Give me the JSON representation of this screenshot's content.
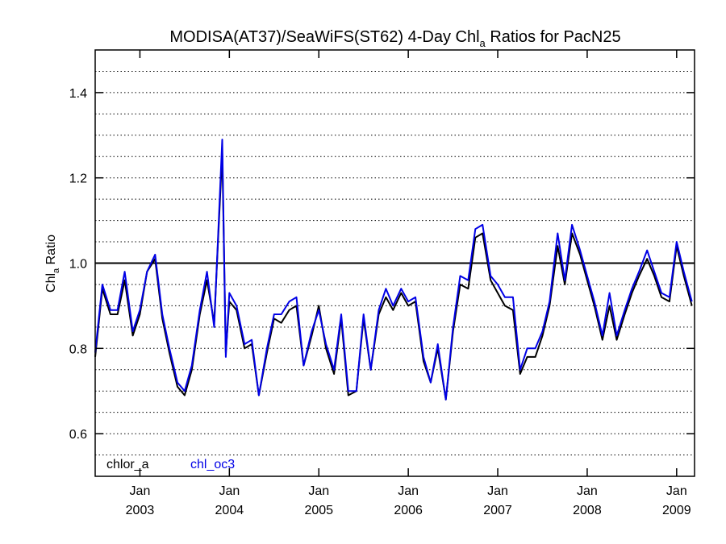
{
  "chart_data": {
    "type": "line",
    "title": "MODISA(AT37)/SeaWiFS(ST62) 4-Day Chl",
    "title_sub": "a",
    "title_tail": " Ratios for PacN25",
    "ylabel": "Chl",
    "ylabel_sub": "a",
    "ylabel_tail": " Ratio",
    "ylim": [
      0.5,
      1.5
    ],
    "xlim": [
      2002.5,
      2009.2
    ],
    "y_ticks": [
      {
        "value": 0.6,
        "label": "0.6"
      },
      {
        "value": 0.8,
        "label": "0.8"
      },
      {
        "value": 1.0,
        "label": "1.0"
      },
      {
        "value": 1.2,
        "label": "1.2"
      },
      {
        "value": 1.4,
        "label": "1.4"
      }
    ],
    "x_ticks": [
      {
        "value": 2003.0,
        "month": "Jan",
        "year": "2003"
      },
      {
        "value": 2004.0,
        "month": "Jan",
        "year": "2004"
      },
      {
        "value": 2005.0,
        "month": "Jan",
        "year": "2005"
      },
      {
        "value": 2006.0,
        "month": "Jan",
        "year": "2006"
      },
      {
        "value": 2007.0,
        "month": "Jan",
        "year": "2007"
      },
      {
        "value": 2008.0,
        "month": "Jan",
        "year": "2008"
      },
      {
        "value": 2009.0,
        "month": "Jan",
        "year": "2009"
      }
    ],
    "grid": "dotted horizontal every 0.05",
    "reference_line": 1.0,
    "x": [
      2002.5,
      2002.58,
      2002.67,
      2002.75,
      2002.83,
      2002.92,
      2003.0,
      2003.08,
      2003.17,
      2003.25,
      2003.33,
      2003.42,
      2003.5,
      2003.58,
      2003.67,
      2003.75,
      2003.83,
      2003.92,
      2003.96,
      2004.0,
      2004.08,
      2004.17,
      2004.25,
      2004.33,
      2004.42,
      2004.5,
      2004.58,
      2004.67,
      2004.75,
      2004.83,
      2004.92,
      2005.0,
      2005.08,
      2005.17,
      2005.25,
      2005.33,
      2005.42,
      2005.5,
      2005.58,
      2005.67,
      2005.75,
      2005.83,
      2005.92,
      2006.0,
      2006.08,
      2006.17,
      2006.25,
      2006.33,
      2006.42,
      2006.5,
      2006.58,
      2006.67,
      2006.75,
      2006.83,
      2006.92,
      2007.0,
      2007.08,
      2007.17,
      2007.25,
      2007.33,
      2007.42,
      2007.5,
      2007.58,
      2007.67,
      2007.75,
      2007.83,
      2007.92,
      2008.0,
      2008.08,
      2008.17,
      2008.25,
      2008.33,
      2008.42,
      2008.5,
      2008.58,
      2008.67,
      2008.75,
      2008.83,
      2008.92,
      2009.0,
      2009.08,
      2009.17
    ],
    "series": [
      {
        "name": "chlor_a",
        "color": "#000000",
        "values": [
          0.78,
          0.94,
          0.88,
          0.88,
          0.96,
          0.83,
          0.88,
          0.98,
          1.01,
          0.87,
          0.79,
          0.71,
          0.69,
          0.75,
          0.88,
          0.96,
          0.86,
          1.26,
          0.79,
          0.91,
          0.89,
          0.8,
          0.81,
          0.69,
          0.79,
          0.87,
          0.86,
          0.89,
          0.9,
          0.76,
          0.83,
          0.9,
          0.8,
          0.74,
          0.87,
          0.69,
          0.7,
          0.87,
          0.75,
          0.88,
          0.92,
          0.89,
          0.93,
          0.9,
          0.91,
          0.77,
          0.72,
          0.8,
          0.68,
          0.84,
          0.95,
          0.94,
          1.06,
          1.07,
          0.96,
          0.93,
          0.9,
          0.89,
          0.74,
          0.78,
          0.78,
          0.83,
          0.9,
          1.04,
          0.95,
          1.07,
          1.02,
          0.96,
          0.9,
          0.82,
          0.9,
          0.82,
          0.88,
          0.93,
          0.97,
          1.01,
          0.97,
          0.92,
          0.91,
          1.04,
          0.97,
          0.9
        ]
      },
      {
        "name": "chl_oc3",
        "color": "#0000e6",
        "values": [
          0.79,
          0.95,
          0.89,
          0.89,
          0.98,
          0.84,
          0.89,
          0.98,
          1.02,
          0.88,
          0.8,
          0.72,
          0.7,
          0.76,
          0.89,
          0.98,
          0.85,
          1.29,
          0.78,
          0.93,
          0.9,
          0.81,
          0.82,
          0.69,
          0.8,
          0.88,
          0.88,
          0.91,
          0.92,
          0.76,
          0.84,
          0.89,
          0.81,
          0.75,
          0.88,
          0.7,
          0.7,
          0.88,
          0.75,
          0.89,
          0.94,
          0.9,
          0.94,
          0.91,
          0.92,
          0.78,
          0.72,
          0.81,
          0.68,
          0.85,
          0.97,
          0.96,
          1.08,
          1.09,
          0.97,
          0.95,
          0.92,
          0.92,
          0.75,
          0.8,
          0.8,
          0.84,
          0.91,
          1.07,
          0.96,
          1.09,
          1.03,
          0.97,
          0.91,
          0.83,
          0.93,
          0.83,
          0.89,
          0.94,
          0.98,
          1.03,
          0.98,
          0.93,
          0.92,
          1.05,
          0.98,
          0.91
        ]
      }
    ],
    "legend": [
      {
        "label": "chlor_a",
        "color": "#000000"
      },
      {
        "label": "chl_oc3",
        "color": "#0000e6"
      }
    ],
    "legend_position": "bottom-left"
  }
}
